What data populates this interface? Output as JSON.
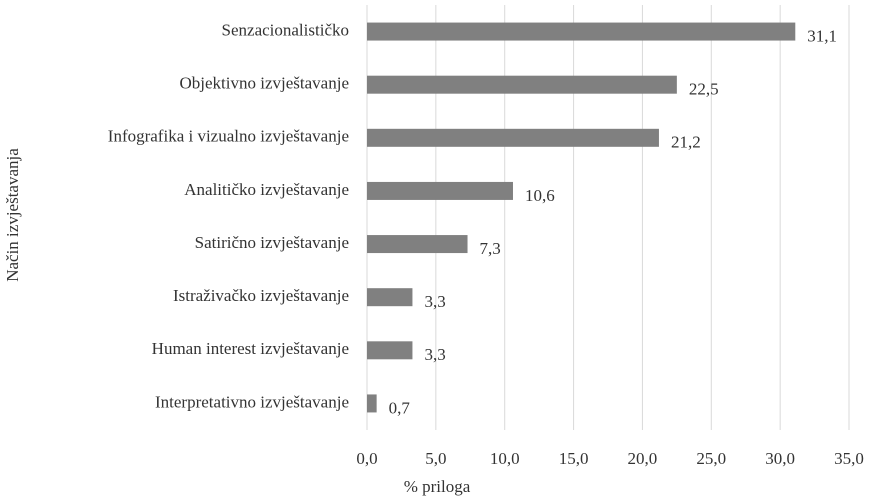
{
  "chart_data": {
    "type": "bar",
    "orientation": "horizontal",
    "x_label": "% priloga",
    "y_label": "Način izvještavanja",
    "categories": [
      "Senzacionalističko",
      "Objektivno izvještavanje",
      "Infografika i vizualno izvještavanje",
      "Analitičko izvještavanje",
      "Satirično izvještavanje",
      "Istraživačko izvještavanje",
      "Human interest izvještavanje",
      "Interpretativno izvještavanje"
    ],
    "values": [
      31.1,
      22.5,
      21.2,
      10.6,
      7.3,
      3.3,
      3.3,
      0.7
    ],
    "value_labels": [
      "31,1",
      "22,5",
      "21,2",
      "10,6",
      "7,3",
      "3,3",
      "3,3",
      "0,7"
    ],
    "color": "#808080",
    "xlim": [
      0,
      35
    ],
    "xticks": [
      {
        "value": 0,
        "label": "0,0"
      },
      {
        "value": 5,
        "label": "5,0"
      },
      {
        "value": 10,
        "label": "10,0"
      },
      {
        "value": 15,
        "label": "15,0"
      },
      {
        "value": 20,
        "label": "20,0"
      },
      {
        "value": 25,
        "label": "25,0"
      },
      {
        "value": 30,
        "label": "30,0"
      },
      {
        "value": 35,
        "label": "35,0"
      }
    ],
    "grid": true
  }
}
